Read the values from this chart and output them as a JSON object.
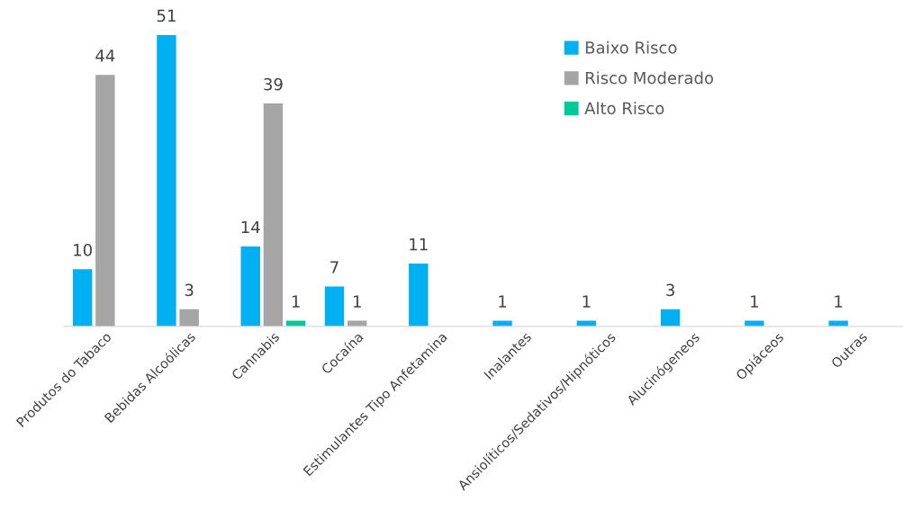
{
  "chart_data": {
    "type": "bar",
    "categories": [
      "Produtos do Tabaco",
      "Bebidas Alcoólicas",
      "Cannabis",
      "Cocaína",
      "Estimulantes Tipo Anfetamina",
      "Inalantes",
      "Ansiolíticos/Sedativos/Hipnóticos",
      "Alucinógeneos",
      "Opiáceos",
      "Outras"
    ],
    "series": [
      {
        "name": "Baixo Risco",
        "color": "#00b0f0",
        "values": [
          10,
          51,
          14,
          7,
          11,
          1,
          1,
          3,
          1,
          1
        ]
      },
      {
        "name": "Risco Moderado",
        "color": "#a5a5a5",
        "values": [
          44,
          3,
          39,
          1,
          null,
          null,
          null,
          null,
          null,
          null
        ]
      },
      {
        "name": "Alto Risco",
        "color": "#00c896",
        "values": [
          null,
          null,
          1,
          null,
          null,
          null,
          null,
          null,
          null,
          null
        ]
      }
    ],
    "data_labels": true,
    "legend": "top right",
    "tick_labels": "x",
    "grid": false
  }
}
